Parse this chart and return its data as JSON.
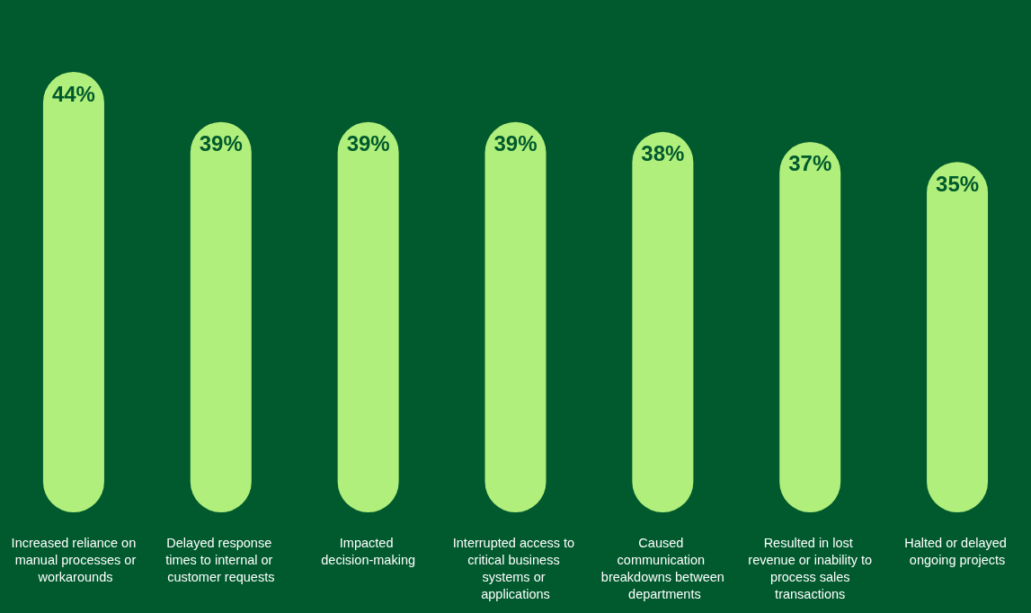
{
  "chart_data": {
    "type": "bar",
    "categories": [
      "Increased reliance on manual processes or workarounds",
      "Delayed response times to internal or customer requests",
      "Impacted decision-making",
      "Interrupted access to critical business systems or applications",
      "Caused communication breakdowns between departments",
      "Resulted in lost revenue or inability to process sales transactions",
      "Halted or delayed ongoing projects"
    ],
    "values": [
      44,
      39,
      39,
      39,
      38,
      37,
      35
    ],
    "value_labels": [
      "44%",
      "39%",
      "39%",
      "39%",
      "38%",
      "37%",
      "35%"
    ],
    "color": "#b1ef7c"
  }
}
